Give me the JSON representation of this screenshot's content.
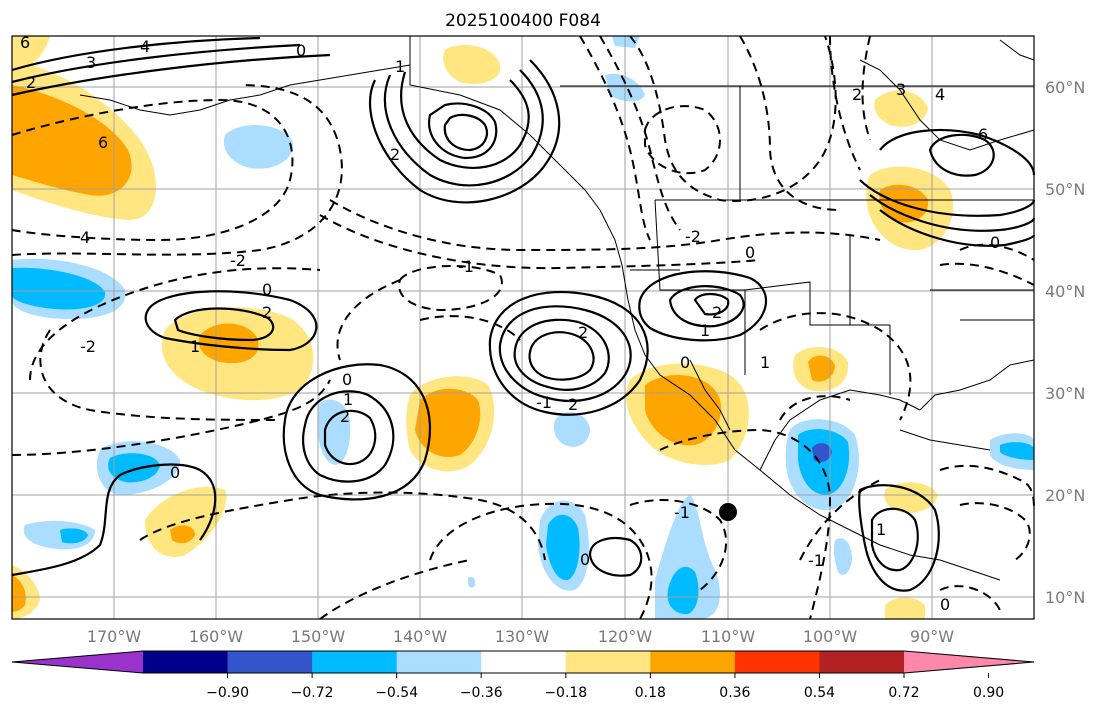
{
  "title": "2025100400 F084",
  "lon_labels": [
    "170°W",
    "160°W",
    "150°W",
    "140°W",
    "130°W",
    "120°W",
    "110°W",
    "100°W",
    "90°W"
  ],
  "lat_labels": [
    "60°N",
    "50°N",
    "40°N",
    "30°N",
    "20°N",
    "10°N"
  ],
  "colorbar": {
    "ticks": [
      "−0.90",
      "−0.72",
      "−0.54",
      "−0.36",
      "−0.18",
      "0.18",
      "0.36",
      "0.54",
      "0.72",
      "0.90"
    ],
    "colors": [
      "#9933cc",
      "#000088",
      "#3355cc",
      "#00bbff",
      "#aaddff",
      "#ffffff",
      "#ffe680",
      "#ffa500",
      "#ff3300",
      "#b22222",
      "#ff88aa"
    ]
  },
  "contour_labels": [
    "6",
    "4",
    "3",
    "2",
    "0",
    "1",
    "2",
    "6",
    "4",
    "-2",
    "-1",
    "0",
    "2",
    "1",
    "-2",
    "2",
    "0",
    "1",
    "2",
    "-1",
    "2",
    "0",
    "-2",
    "2",
    "1",
    "0",
    "6",
    "4",
    "3",
    "2",
    "0",
    "1",
    "0",
    "-1",
    "0",
    "-1",
    "0",
    "1"
  ],
  "storm_marker": "storm-center"
}
